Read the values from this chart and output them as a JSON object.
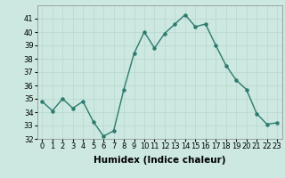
{
  "x": [
    0,
    1,
    2,
    3,
    4,
    5,
    6,
    7,
    8,
    9,
    10,
    11,
    12,
    13,
    14,
    15,
    16,
    17,
    18,
    19,
    20,
    21,
    22,
    23
  ],
  "y": [
    34.8,
    34.1,
    35.0,
    34.3,
    34.8,
    33.3,
    32.2,
    32.6,
    35.7,
    38.4,
    40.0,
    38.8,
    39.9,
    40.6,
    41.3,
    40.4,
    40.6,
    39.0,
    37.5,
    36.4,
    35.7,
    33.9,
    33.1,
    33.2
  ],
  "xlabel": "Humidex (Indice chaleur)",
  "ylim": [
    32,
    42
  ],
  "xlim": [
    -0.5,
    23.5
  ],
  "yticks": [
    32,
    33,
    34,
    35,
    36,
    37,
    38,
    39,
    40,
    41
  ],
  "xticks": [
    0,
    1,
    2,
    3,
    4,
    5,
    6,
    7,
    8,
    9,
    10,
    11,
    12,
    13,
    14,
    15,
    16,
    17,
    18,
    19,
    20,
    21,
    22,
    23
  ],
  "line_color": "#2d7a6e",
  "marker_color": "#2d7a6e",
  "bg_color": "#cce8e0",
  "grid_color": "#b8d8d0",
  "tick_label_fontsize": 6.0,
  "xlabel_fontsize": 7.5
}
